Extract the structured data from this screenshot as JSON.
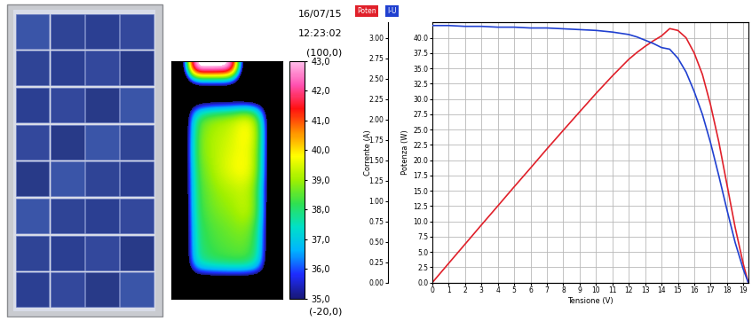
{
  "thermal_image": {
    "date": "16/07/15",
    "time": "12:23:02",
    "range_max_label": "(100,0)",
    "range_min_label": "(-20,0)",
    "cells": [
      [
        30,
        44,
        44,
        44,
        43.5,
        30,
        30,
        30
      ],
      [
        30,
        30,
        30,
        30,
        30,
        30,
        30,
        30
      ],
      [
        30,
        37.5,
        38.5,
        38.8,
        39.0,
        39.5,
        37.8,
        30
      ],
      [
        30,
        38.0,
        39.0,
        39.2,
        39.5,
        40.2,
        38.5,
        30
      ],
      [
        30,
        38.2,
        39.0,
        39.3,
        39.6,
        39.8,
        38.3,
        30
      ],
      [
        30,
        38.0,
        38.8,
        39.4,
        39.8,
        40.0,
        38.2,
        30
      ],
      [
        30,
        37.9,
        38.6,
        39.0,
        39.2,
        39.3,
        37.8,
        30
      ],
      [
        30,
        37.8,
        38.5,
        38.8,
        39.0,
        39.5,
        37.9,
        30
      ],
      [
        30,
        37.6,
        38.3,
        38.5,
        38.7,
        38.8,
        37.5,
        30
      ],
      [
        30,
        37.5,
        38.2,
        38.4,
        38.5,
        38.6,
        37.4,
        30
      ],
      [
        30,
        37.2,
        37.8,
        38.0,
        38.1,
        38.0,
        37.0,
        30
      ],
      [
        30,
        30,
        30,
        30,
        30,
        30,
        30,
        30
      ]
    ],
    "colorbar": {
      "range": [
        35.0,
        43.0
      ],
      "ticks": [
        {
          "value": 35.0,
          "label": "35,0"
        },
        {
          "value": 36.0,
          "label": "36,0"
        },
        {
          "value": 37.0,
          "label": "37,0"
        },
        {
          "value": 38.0,
          "label": "38,0"
        },
        {
          "value": 39.0,
          "label": "39,0"
        },
        {
          "value": 40.0,
          "label": "40,0"
        },
        {
          "value": 41.0,
          "label": "41,0"
        },
        {
          "value": 42.0,
          "label": "42,0"
        },
        {
          "value": 43.0,
          "label": "43,0"
        }
      ]
    }
  },
  "chart_data": {
    "type": "line",
    "x_label": "Tensione (V)",
    "y_label": "Potenza (W)",
    "y2_label": "Corrente (A)",
    "x": [
      0,
      1,
      2,
      3,
      4,
      5,
      6,
      7,
      8,
      9,
      10,
      11,
      12,
      12.5,
      13,
      13.5,
      14,
      14.5,
      15,
      15.5,
      16,
      16.5,
      17,
      17.5,
      18,
      18.5,
      19,
      19.3
    ],
    "xlim": [
      0,
      19.3
    ],
    "xticks": [
      0,
      1,
      2,
      3,
      4,
      5,
      6,
      7,
      8,
      9,
      10,
      11,
      12,
      13,
      14,
      15,
      16,
      17,
      18,
      19
    ],
    "ylim": [
      0,
      42.5
    ],
    "yticks": [
      {
        "value": 0,
        "label": "0.0"
      },
      {
        "value": 2.5,
        "label": "2.5"
      },
      {
        "value": 5,
        "label": "5.0"
      },
      {
        "value": 7.5,
        "label": "7.5"
      },
      {
        "value": 10,
        "label": "10.0"
      },
      {
        "value": 12.5,
        "label": "12.5"
      },
      {
        "value": 15,
        "label": "15.0"
      },
      {
        "value": 17.5,
        "label": "17.5"
      },
      {
        "value": 20,
        "label": "20.0"
      },
      {
        "value": 22.5,
        "label": "22.5"
      },
      {
        "value": 25,
        "label": "25.0"
      },
      {
        "value": 27.5,
        "label": "27.5"
      },
      {
        "value": 30,
        "label": "30.0"
      },
      {
        "value": 32.5,
        "label": "32.5"
      },
      {
        "value": 35,
        "label": "35.0"
      },
      {
        "value": 37.5,
        "label": "37.5"
      },
      {
        "value": 40,
        "label": "40.0"
      }
    ],
    "y2lim": [
      0,
      3.1875
    ],
    "y2ticks": [
      {
        "value": 0,
        "label": "0.00"
      },
      {
        "value": 0.25,
        "label": "0.25"
      },
      {
        "value": 0.5,
        "label": "0.50"
      },
      {
        "value": 0.75,
        "label": "0.75"
      },
      {
        "value": 1,
        "label": "1.00"
      },
      {
        "value": 1.25,
        "label": "1.25"
      },
      {
        "value": 1.5,
        "label": "1.50"
      },
      {
        "value": 1.75,
        "label": "1.75"
      },
      {
        "value": 2,
        "label": "2.00"
      },
      {
        "value": 2.25,
        "label": "2.25"
      },
      {
        "value": 2.5,
        "label": "2.50"
      },
      {
        "value": 2.75,
        "label": "2.75"
      },
      {
        "value": 3,
        "label": "3.00"
      }
    ],
    "grid": true,
    "series": [
      {
        "name": "Poten",
        "color": "#e0202a",
        "values": [
          0,
          3.15,
          6.28,
          9.42,
          12.52,
          15.65,
          18.72,
          21.84,
          24.88,
          27.9,
          30.9,
          33.77,
          36.48,
          37.6,
          38.6,
          39.5,
          40.3,
          41.5,
          41.2,
          40.0,
          37.5,
          34.0,
          29.0,
          23.0,
          16.0,
          9.0,
          3.0,
          0
        ]
      },
      {
        "name": "I-U",
        "color": "#2040d0",
        "axis": "y2",
        "values": [
          3.15,
          3.15,
          3.14,
          3.14,
          3.13,
          3.13,
          3.12,
          3.12,
          3.11,
          3.1,
          3.09,
          3.07,
          3.04,
          3.01,
          2.97,
          2.93,
          2.88,
          2.86,
          2.75,
          2.58,
          2.34,
          2.06,
          1.71,
          1.31,
          0.89,
          0.49,
          0.16,
          0
        ]
      }
    ]
  }
}
